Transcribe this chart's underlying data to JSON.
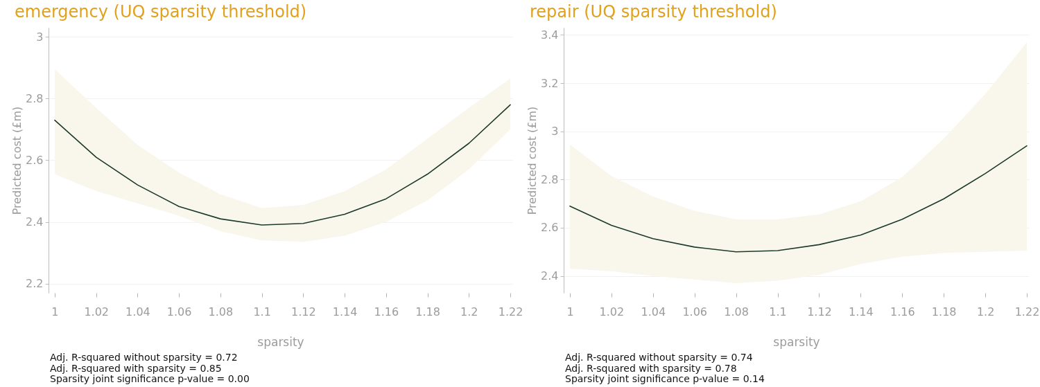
{
  "chart_data": [
    {
      "type": "line",
      "title": "emergency (UQ sparsity threshold)",
      "xlabel": "sparsity",
      "ylabel": "Predicted cost (£m)",
      "x": [
        1,
        1.02,
        1.04,
        1.06,
        1.08,
        1.1,
        1.12,
        1.14,
        1.16,
        1.18,
        1.2,
        1.22
      ],
      "series": [
        {
          "color": "#1b3a2b",
          "values": [
            2.73,
            2.61,
            2.52,
            2.45,
            2.41,
            2.39,
            2.395,
            2.425,
            2.475,
            2.555,
            2.655,
            2.78
          ],
          "lower": [
            2.555,
            2.5,
            2.46,
            2.42,
            2.37,
            2.34,
            2.335,
            2.355,
            2.4,
            2.47,
            2.57,
            2.7
          ],
          "upper": [
            2.895,
            2.77,
            2.65,
            2.56,
            2.49,
            2.445,
            2.455,
            2.5,
            2.57,
            2.67,
            2.77,
            2.865
          ]
        }
      ],
      "xlim": [
        0.997,
        1.221
      ],
      "xticks": [
        1,
        1.02,
        1.04,
        1.06,
        1.08,
        1.1,
        1.12,
        1.14,
        1.16,
        1.18,
        1.2,
        1.22
      ],
      "ylim": [
        2.17,
        3.03
      ],
      "yticks": [
        2.2,
        2.4,
        2.6,
        2.8,
        3
      ],
      "grid": "y",
      "annotations": [
        "Adj. R-squared without sparsity = 0.72",
        "Adj. R-squared with sparsity = 0.85",
        "Sparsity joint significance p-value = 0.00"
      ]
    },
    {
      "type": "line",
      "title": "repair (UQ sparsity threshold)",
      "xlabel": "sparsity",
      "ylabel": "Predicted cost (£m)",
      "x": [
        1,
        1.02,
        1.04,
        1.06,
        1.08,
        1.1,
        1.12,
        1.14,
        1.16,
        1.18,
        1.2,
        1.22
      ],
      "series": [
        {
          "color": "#1b3a2b",
          "values": [
            2.69,
            2.61,
            2.555,
            2.52,
            2.5,
            2.505,
            2.53,
            2.57,
            2.635,
            2.72,
            2.825,
            2.94
          ],
          "lower": [
            2.43,
            2.42,
            2.4,
            2.385,
            2.37,
            2.38,
            2.405,
            2.45,
            2.48,
            2.495,
            2.5,
            2.505
          ],
          "upper": [
            2.945,
            2.815,
            2.73,
            2.67,
            2.635,
            2.635,
            2.655,
            2.71,
            2.81,
            2.97,
            3.155,
            3.37
          ]
        }
      ],
      "xlim": [
        0.997,
        1.221
      ],
      "xticks": [
        1,
        1.02,
        1.04,
        1.06,
        1.08,
        1.1,
        1.12,
        1.14,
        1.16,
        1.18,
        1.2,
        1.22
      ],
      "ylim": [
        2.33,
        3.43
      ],
      "yticks": [
        2.4,
        2.6,
        2.8,
        3,
        3.2,
        3.4
      ],
      "grid": "y",
      "annotations": [
        "Adj. R-squared without sparsity = 0.74",
        "Adj. R-squared with sparsity = 0.78",
        "Sparsity joint significance p-value = 0.14"
      ]
    }
  ]
}
